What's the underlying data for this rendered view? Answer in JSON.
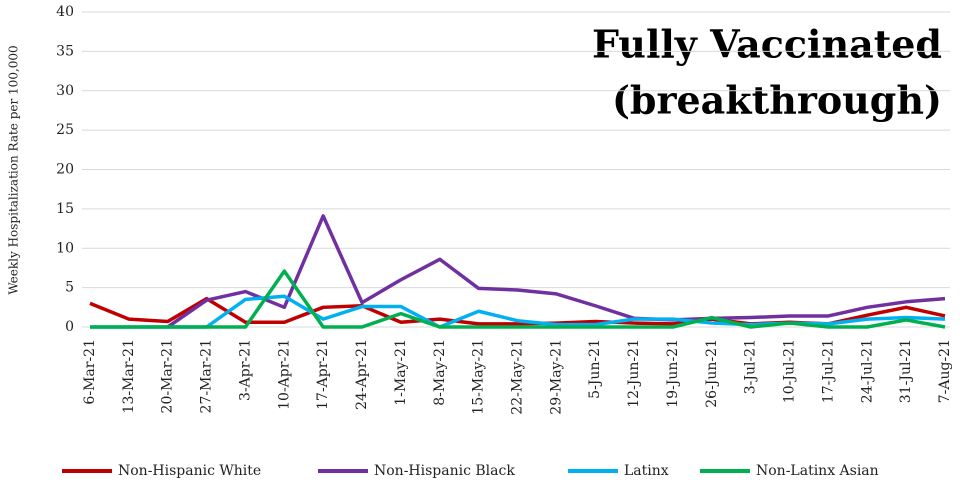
{
  "chart_data": {
    "type": "line",
    "title": "Fully Vaccinated",
    "subtitle": "(breakthrough)",
    "y_label": "Weekly Hospitalization Rate per 100,000",
    "categories": [
      "6-Mar-21",
      "13-Mar-21",
      "20-Mar-21",
      "27-Mar-21",
      "3-Apr-21",
      "10-Apr-21",
      "17-Apr-21",
      "24-Apr-21",
      "1-May-21",
      "8-May-21",
      "15-May-21",
      "22-May-21",
      "29-May-21",
      "5-Jun-21",
      "12-Jun-21",
      "19-Jun-21",
      "26-Jun-21",
      "3-Jul-21",
      "10-Jul-21",
      "17-Jul-21",
      "24-Jul-21",
      "31-Jul-21",
      "7-Aug-21"
    ],
    "series": [
      {
        "name": "Non-Hispanic White",
        "color": "#c00000",
        "values": [
          3.0,
          1.0,
          0.7,
          3.6,
          0.6,
          0.6,
          2.5,
          2.7,
          0.6,
          1.0,
          0.4,
          0.4,
          0.5,
          0.7,
          0.5,
          0.4,
          1.0,
          0.4,
          0.6,
          0.4,
          1.5,
          2.5,
          1.4
        ]
      },
      {
        "name": "Non-Hispanic Black",
        "color": "#7030a0",
        "values": [
          null,
          null,
          0,
          3.4,
          4.5,
          2.5,
          14.1,
          3.1,
          6.0,
          8.6,
          4.9,
          4.7,
          4.2,
          2.7,
          1.1,
          0.9,
          1.1,
          1.2,
          1.4,
          1.4,
          2.5,
          3.2,
          3.6
        ]
      },
      {
        "name": "Latinx",
        "color": "#00b0f0",
        "values": [
          0,
          0,
          0,
          0,
          3.5,
          3.9,
          1.0,
          2.6,
          2.6,
          0,
          2.0,
          0.8,
          0.3,
          0.3,
          1.0,
          1.0,
          0.5,
          0.3,
          0.5,
          0.4,
          1.0,
          1.2,
          1.0
        ]
      },
      {
        "name": "Non-Latinx Asian",
        "color": "#00b050",
        "values": [
          0,
          0,
          0,
          0,
          0,
          7.1,
          0,
          0,
          1.7,
          0,
          0,
          0,
          0,
          0,
          0,
          0,
          1.2,
          0,
          0.5,
          0,
          0,
          0.9,
          0
        ]
      }
    ],
    "ylim": [
      0,
      40
    ],
    "yticks": [
      0,
      5,
      10,
      15,
      20,
      25,
      30,
      35,
      40
    ],
    "grid": true,
    "legend": "bottom"
  }
}
